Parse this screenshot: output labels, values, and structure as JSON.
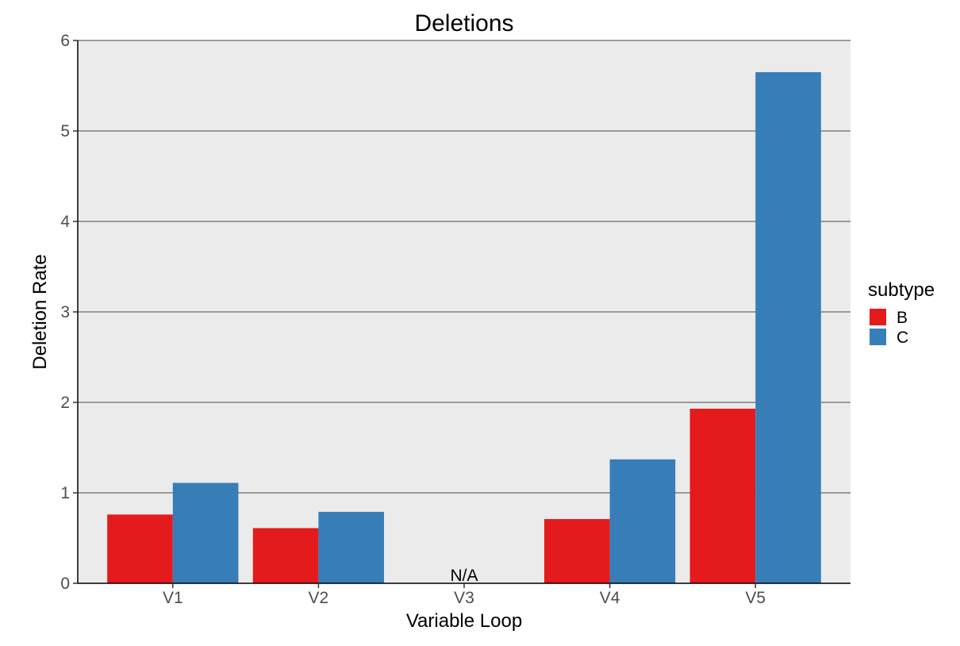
{
  "chart_data": {
    "type": "bar",
    "title": "Deletions",
    "xlabel": "Variable Loop",
    "ylabel": "Deletion Rate",
    "categories": [
      "V1",
      "V2",
      "V3",
      "V4",
      "V5"
    ],
    "series": [
      {
        "name": "B",
        "color": "#e41a1c",
        "values": [
          0.76,
          0.61,
          null,
          0.71,
          1.93
        ]
      },
      {
        "name": "C",
        "color": "#377eb8",
        "values": [
          1.11,
          0.79,
          null,
          1.37,
          5.65
        ]
      }
    ],
    "ylim": [
      0,
      6
    ],
    "yticks": [
      "0",
      "1",
      "2",
      "3",
      "4",
      "5",
      "6"
    ],
    "legend": {
      "title": "subtype",
      "position": "right"
    },
    "annotations": [
      {
        "category": "V3",
        "text": "N/A"
      }
    ],
    "grid": true,
    "panel_background": "#ebebeb"
  }
}
